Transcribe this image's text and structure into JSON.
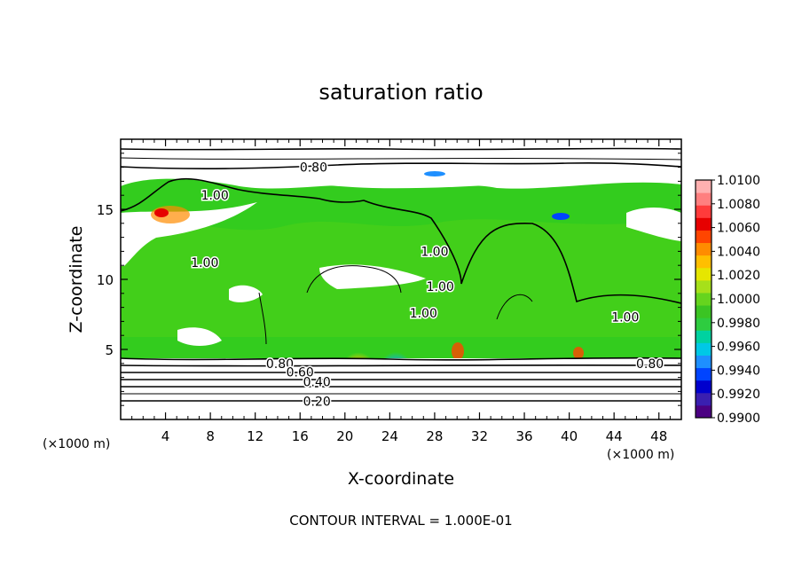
{
  "chart_data": {
    "type": "heatmap",
    "title": "saturation ratio",
    "xlabel": "X-coordinate",
    "ylabel": "Z-coordinate",
    "x_unit": "(×1000 m)",
    "y_unit": "(×1000 m)",
    "xlim": [
      0,
      50
    ],
    "ylim": [
      0,
      20
    ],
    "x_ticks": [
      4,
      8,
      12,
      16,
      20,
      24,
      28,
      32,
      36,
      40,
      44,
      48
    ],
    "y_ticks": [
      5,
      10,
      15
    ],
    "footer": "CONTOUR INTERVAL = 1.000E-01",
    "colorbar": {
      "min": 0.99,
      "max": 1.01,
      "tick_labels": [
        "1.0100",
        "1.0080",
        "1.0060",
        "1.0040",
        "1.0020",
        "1.0000",
        "0.9980",
        "0.9960",
        "0.9940",
        "0.9920",
        "0.9900"
      ],
      "colors": [
        "#4b0082",
        "#3a1fb0",
        "#0000cd",
        "#0044ff",
        "#1e8fff",
        "#00c8e6",
        "#00d2a0",
        "#2ecc40",
        "#3bc423",
        "#66d41e",
        "#a6e01a",
        "#e6e600",
        "#ffbf00",
        "#ff8c00",
        "#ff4500",
        "#e60000",
        "#ff3b3b",
        "#ff7f7f",
        "#ffb0b0"
      ]
    },
    "contour_labels": [
      {
        "text": "0.80",
        "x": 17.2,
        "z": 18.0
      },
      {
        "text": "1.00",
        "x": 8.4,
        "z": 16.0
      },
      {
        "text": "1.00",
        "x": 28.0,
        "z": 12.0
      },
      {
        "text": "1.00",
        "x": 28.5,
        "z": 9.5
      },
      {
        "text": "1.00",
        "x": 27.0,
        "z": 7.6
      },
      {
        "text": "1.00",
        "x": 45.0,
        "z": 7.3
      },
      {
        "text": "1.00",
        "x": 7.5,
        "z": 11.2
      },
      {
        "text": "0.80",
        "x": 14.2,
        "z": 4.0
      },
      {
        "text": "0.60",
        "x": 16.0,
        "z": 3.4
      },
      {
        "text": "0.40",
        "x": 17.5,
        "z": 2.7
      },
      {
        "text": "0.20",
        "x": 17.5,
        "z": 1.3
      },
      {
        "text": "0.80",
        "x": 47.2,
        "z": 4.0
      }
    ]
  }
}
